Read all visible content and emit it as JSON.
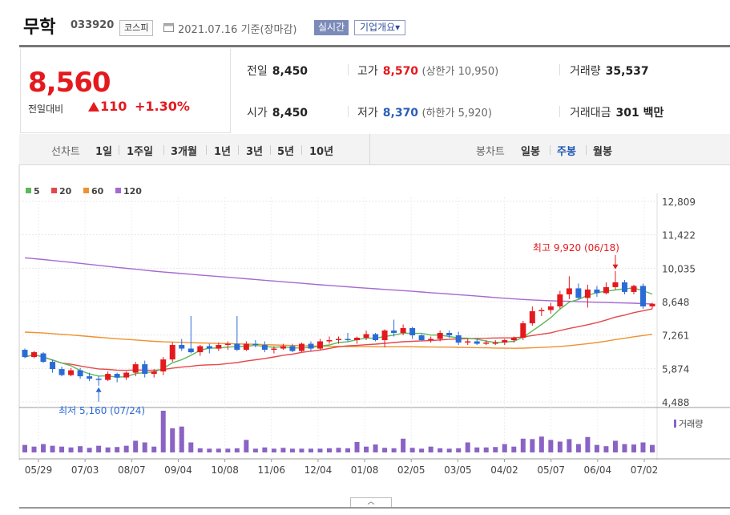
{
  "header": {
    "name": "무학",
    "code": "033920",
    "market": "코스피",
    "date": "2021.07.16  기준(장마감)",
    "realtime_label": "실시간",
    "company_label": "기업개요▾"
  },
  "quote": {
    "price": "8,560",
    "change_label": "전일대비",
    "change": "110",
    "change_rate": "+1.30%",
    "prev_close_label": "전일",
    "prev_close": "8,450",
    "open_label": "시가",
    "open": "8,450",
    "high_label": "고가",
    "high": "8,570",
    "upper_limit": "(상한가 10,950)",
    "low_label": "저가",
    "low": "8,370",
    "lower_limit": "(하한가 5,920)",
    "volume_label": "거래량",
    "volume": "35,537",
    "value_label": "거래대금",
    "value": "301 백만"
  },
  "tabs": {
    "line_label": "선차트",
    "line": [
      "1일",
      "1주일",
      "3개월",
      "1년",
      "3년",
      "5년",
      "10년"
    ],
    "candle_label": "봉차트",
    "candle": [
      "일봉",
      "주봉",
      "월봉"
    ],
    "active": "주봉"
  },
  "colors": {
    "up": "#e4191e",
    "down": "#2b6bd6",
    "ma5": "#5cb85c",
    "ma20": "#e4484b",
    "ma60": "#f0912f",
    "ma120": "#a56ad0",
    "volume": "#8a63c4"
  },
  "chart_data": {
    "type": "candlestick",
    "legend": [
      "5",
      "20",
      "60",
      "120"
    ],
    "y_ticks": [
      "12,809",
      "11,422",
      "10,035",
      "8,648",
      "7,261",
      "5,874",
      "4,488"
    ],
    "ylim": [
      4488,
      12809
    ],
    "x_ticks": [
      "05/29",
      "07/03",
      "08/07",
      "09/04",
      "10/08",
      "11/06",
      "12/04",
      "01/08",
      "02/05",
      "03/05",
      "04/02",
      "05/07",
      "06/04",
      "07/02"
    ],
    "annotations": {
      "high": "최고 9,920 (06/18)",
      "low": "최저 5,160 (07/24)"
    },
    "volume_label": "거래량",
    "candles": [
      [
        6650,
        6700,
        6300,
        6350
      ],
      [
        6350,
        6600,
        6300,
        6550
      ],
      [
        6500,
        6550,
        6100,
        6150
      ],
      [
        6150,
        6250,
        5700,
        5850
      ],
      [
        5850,
        5950,
        5550,
        5600
      ],
      [
        5600,
        5900,
        5550,
        5800
      ],
      [
        5800,
        5900,
        5450,
        5550
      ],
      [
        5550,
        5700,
        5350,
        5450
      ],
      [
        5450,
        5550,
        5160,
        5400
      ],
      [
        5400,
        5750,
        5350,
        5650
      ],
      [
        5650,
        5700,
        5300,
        5500
      ],
      [
        5500,
        5750,
        5400,
        5700
      ],
      [
        5700,
        6150,
        5550,
        6050
      ],
      [
        6050,
        6200,
        5500,
        5650
      ],
      [
        5650,
        5850,
        5500,
        5750
      ],
      [
        5750,
        6350,
        5600,
        6250
      ],
      [
        6250,
        6950,
        6150,
        6850
      ],
      [
        6850,
        7100,
        6600,
        6700
      ],
      [
        6700,
        8050,
        6500,
        6550
      ],
      [
        6550,
        6850,
        6400,
        6800
      ],
      [
        6800,
        6900,
        6500,
        6700
      ],
      [
        6700,
        6950,
        6600,
        6850
      ],
      [
        6850,
        7000,
        6650,
        6900
      ],
      [
        6900,
        8050,
        6600,
        6650
      ],
      [
        6650,
        7000,
        6600,
        6900
      ],
      [
        6900,
        7050,
        6750,
        6850
      ],
      [
        6850,
        7000,
        6550,
        6650
      ],
      [
        6650,
        6800,
        6500,
        6700
      ],
      [
        6700,
        6900,
        6650,
        6800
      ],
      [
        6800,
        6900,
        6550,
        6600
      ],
      [
        6600,
        6950,
        6550,
        6900
      ],
      [
        6900,
        7000,
        6600,
        6700
      ],
      [
        6700,
        7100,
        6650,
        7000
      ],
      [
        7000,
        7200,
        6900,
        7050
      ],
      [
        7050,
        7200,
        6900,
        7100
      ],
      [
        7100,
        7350,
        7000,
        7050
      ],
      [
        7050,
        7200,
        6900,
        7150
      ],
      [
        7150,
        7450,
        7050,
        7300
      ],
      [
        7300,
        7350,
        7000,
        7050
      ],
      [
        7050,
        7500,
        6750,
        7450
      ],
      [
        7450,
        7900,
        7200,
        7350
      ],
      [
        7350,
        7700,
        7250,
        7550
      ],
      [
        7550,
        7600,
        7100,
        7250
      ],
      [
        7250,
        7300,
        7000,
        7050
      ],
      [
        7050,
        7200,
        6950,
        7100
      ],
      [
        7100,
        7450,
        7000,
        7350
      ],
      [
        7350,
        7450,
        7150,
        7250
      ],
      [
        7250,
        7400,
        6850,
        6950
      ],
      [
        6950,
        7100,
        6850,
        7000
      ],
      [
        7000,
        7100,
        6850,
        6900
      ],
      [
        6900,
        7050,
        6850,
        6950
      ],
      [
        6950,
        7050,
        6850,
        6950
      ],
      [
        6950,
        7100,
        6850,
        7050
      ],
      [
        7050,
        7200,
        6950,
        7150
      ],
      [
        7150,
        7850,
        7050,
        7750
      ],
      [
        7750,
        8450,
        7650,
        8250
      ],
      [
        8250,
        8400,
        8050,
        8300
      ],
      [
        8300,
        8600,
        8150,
        8450
      ],
      [
        8450,
        9100,
        8350,
        8950
      ],
      [
        8950,
        9700,
        8750,
        9200
      ],
      [
        9200,
        9400,
        8750,
        8800
      ],
      [
        8800,
        9350,
        8400,
        9150
      ],
      [
        9150,
        9300,
        8850,
        9000
      ],
      [
        9000,
        9450,
        8950,
        9250
      ],
      [
        9250,
        9920,
        9150,
        9450
      ],
      [
        9450,
        9550,
        8950,
        9050
      ],
      [
        9050,
        9350,
        8950,
        9300
      ],
      [
        9300,
        9400,
        8350,
        8450
      ],
      [
        8450,
        8600,
        8350,
        8560
      ]
    ],
    "volumes": [
      18,
      14,
      20,
      16,
      14,
      12,
      15,
      11,
      16,
      12,
      13,
      16,
      28,
      24,
      14,
      100,
      58,
      62,
      24,
      10,
      9,
      9,
      9,
      10,
      30,
      9,
      12,
      9,
      11,
      9,
      9,
      9,
      9,
      10,
      11,
      10,
      25,
      14,
      19,
      11,
      10,
      33,
      11,
      9,
      14,
      10,
      9,
      10,
      24,
      12,
      12,
      13,
      20,
      14,
      33,
      32,
      38,
      30,
      26,
      32,
      20,
      37,
      18,
      15,
      28,
      20,
      19,
      24,
      18
    ]
  }
}
